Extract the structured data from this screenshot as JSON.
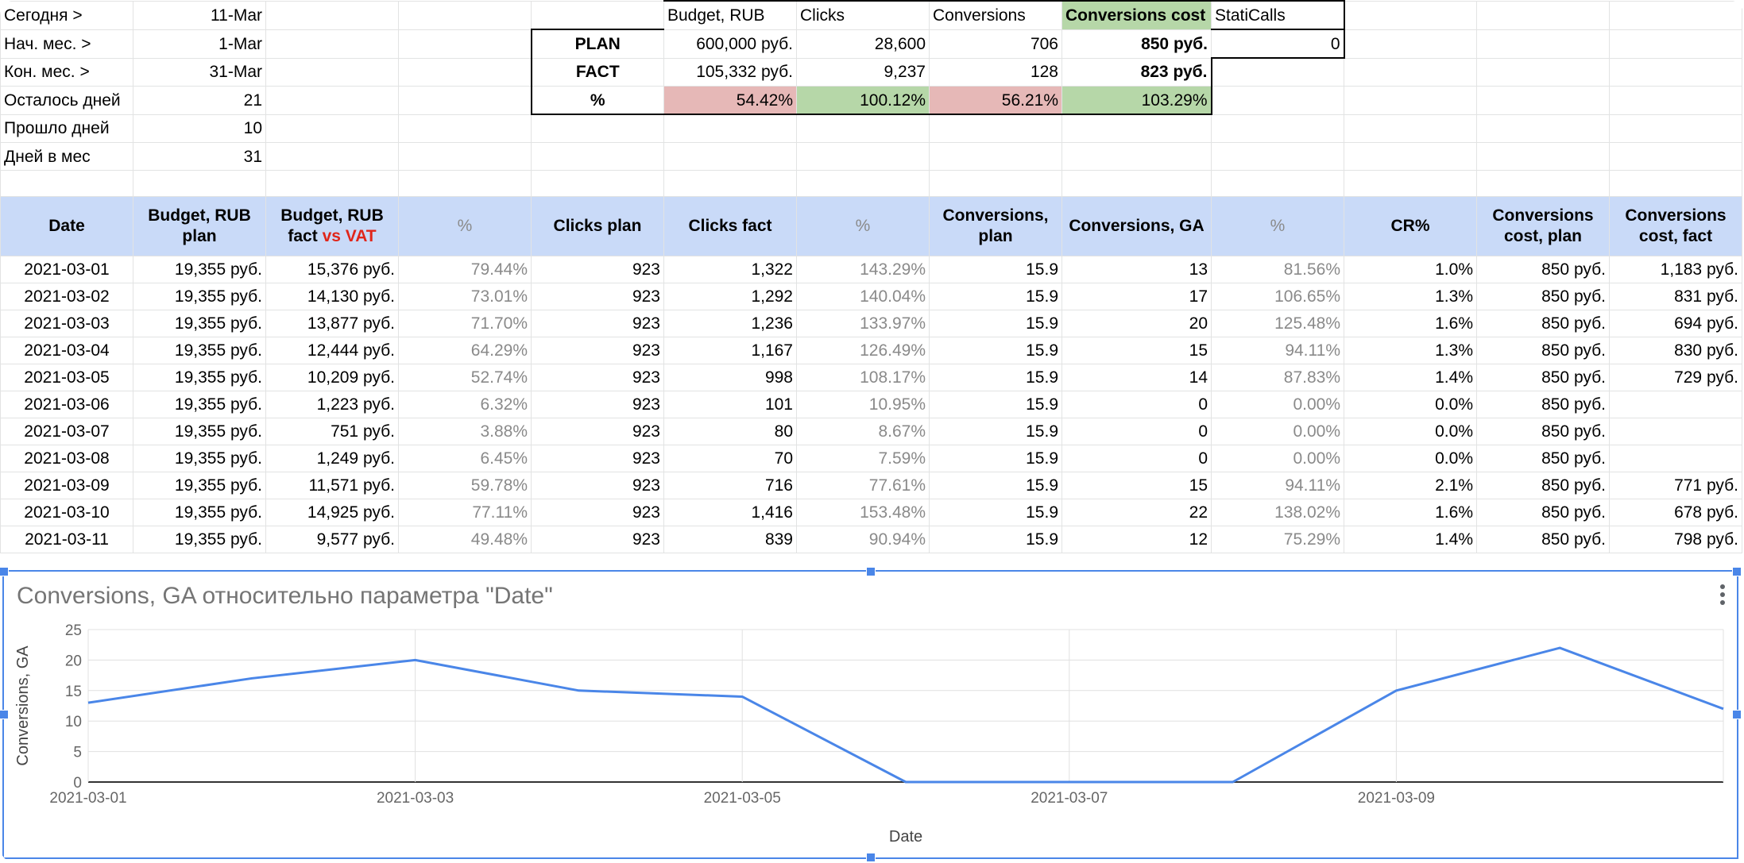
{
  "summary": {
    "labels": [
      "Сегодня >",
      "Нач. мес. >",
      "Кон. мес. >",
      "Осталось дней",
      "Прошло дней",
      "Дней в мес"
    ],
    "values": [
      "11-Mar",
      "1-Mar",
      "31-Mar",
      "21",
      "10",
      "31"
    ]
  },
  "kpi": {
    "headers": [
      "Budget, RUB",
      "Clicks",
      "Conversions",
      "Conversions cost",
      "StatiCalls"
    ],
    "plan_label": "PLAN",
    "plan": [
      "600,000 руб.",
      "28,600",
      "706",
      "850 руб.",
      "0"
    ],
    "fact_label": "FACT",
    "fact": [
      "105,332 руб.",
      "9,237",
      "128",
      "823 руб."
    ],
    "pct_label": "%",
    "pct": [
      "54.42%",
      "100.12%",
      "56.21%",
      "103.29%"
    ],
    "colors": {
      "pink": "#e6b8b7",
      "green": "#b6d7a8"
    }
  },
  "table": {
    "headers": {
      "date": "Date",
      "budget_plan": "Budget, RUB plan",
      "budget_fact_a": "Budget, RUB fact",
      "budget_fact_b": "vs VAT",
      "pct1": "%",
      "clicks_plan": "Clicks plan",
      "clicks_fact": "Clicks fact",
      "pct2": "%",
      "conv_plan": "Conversions, plan",
      "conv_ga": "Conversions, GA",
      "pct3": "%",
      "cr": "CR%",
      "cost_plan": "Conversions cost, plan",
      "cost_fact": "Conversions cost, fact"
    },
    "header_color": "#c9daf8",
    "rows": [
      [
        "2021-03-01",
        "19,355 руб.",
        "15,376 руб.",
        "79.44%",
        "923",
        "1,322",
        "143.29%",
        "15.9",
        "13",
        "81.56%",
        "1.0%",
        "850 руб.",
        "1,183 руб."
      ],
      [
        "2021-03-02",
        "19,355 руб.",
        "14,130 руб.",
        "73.01%",
        "923",
        "1,292",
        "140.04%",
        "15.9",
        "17",
        "106.65%",
        "1.3%",
        "850 руб.",
        "831 руб."
      ],
      [
        "2021-03-03",
        "19,355 руб.",
        "13,877 руб.",
        "71.70%",
        "923",
        "1,236",
        "133.97%",
        "15.9",
        "20",
        "125.48%",
        "1.6%",
        "850 руб.",
        "694 руб."
      ],
      [
        "2021-03-04",
        "19,355 руб.",
        "12,444 руб.",
        "64.29%",
        "923",
        "1,167",
        "126.49%",
        "15.9",
        "15",
        "94.11%",
        "1.3%",
        "850 руб.",
        "830 руб."
      ],
      [
        "2021-03-05",
        "19,355 руб.",
        "10,209 руб.",
        "52.74%",
        "923",
        "998",
        "108.17%",
        "15.9",
        "14",
        "87.83%",
        "1.4%",
        "850 руб.",
        "729 руб."
      ],
      [
        "2021-03-06",
        "19,355 руб.",
        "1,223 руб.",
        "6.32%",
        "923",
        "101",
        "10.95%",
        "15.9",
        "0",
        "0.00%",
        "0.0%",
        "850 руб.",
        ""
      ],
      [
        "2021-03-07",
        "19,355 руб.",
        "751 руб.",
        "3.88%",
        "923",
        "80",
        "8.67%",
        "15.9",
        "0",
        "0.00%",
        "0.0%",
        "850 руб.",
        ""
      ],
      [
        "2021-03-08",
        "19,355 руб.",
        "1,249 руб.",
        "6.45%",
        "923",
        "70",
        "7.59%",
        "15.9",
        "0",
        "0.00%",
        "0.0%",
        "850 руб.",
        ""
      ],
      [
        "2021-03-09",
        "19,355 руб.",
        "11,571 руб.",
        "59.78%",
        "923",
        "716",
        "77.61%",
        "15.9",
        "15",
        "94.11%",
        "2.1%",
        "850 руб.",
        "771 руб."
      ],
      [
        "2021-03-10",
        "19,355 руб.",
        "14,925 руб.",
        "77.11%",
        "923",
        "1,416",
        "153.48%",
        "15.9",
        "22",
        "138.02%",
        "1.6%",
        "850 руб.",
        "678 руб."
      ],
      [
        "2021-03-11",
        "19,355 руб.",
        "9,577 руб.",
        "49.48%",
        "923",
        "839",
        "90.94%",
        "15.9",
        "12",
        "75.29%",
        "1.4%",
        "850 руб.",
        "798 руб."
      ]
    ]
  },
  "chart_data": {
    "type": "line",
    "title": "Conversions, GA относительно параметра \"Date\"",
    "xlabel": "Date",
    "ylabel": "Conversions, GA",
    "x": [
      "2021-03-01",
      "2021-03-02",
      "2021-03-03",
      "2021-03-04",
      "2021-03-05",
      "2021-03-06",
      "2021-03-07",
      "2021-03-08",
      "2021-03-09",
      "2021-03-10",
      "2021-03-11"
    ],
    "series": [
      {
        "values": [
          13,
          17,
          20,
          15,
          14,
          0,
          0,
          0,
          15,
          22,
          12
        ]
      }
    ],
    "x_tick_labels": [
      "2021-03-01",
      "2021-03-03",
      "2021-03-05",
      "2021-03-07",
      "2021-03-09"
    ],
    "y_ticks": [
      0,
      5,
      10,
      15,
      20,
      25
    ],
    "ylim": [
      0,
      25
    ],
    "grid": true,
    "line_color": "#4a86e8"
  }
}
